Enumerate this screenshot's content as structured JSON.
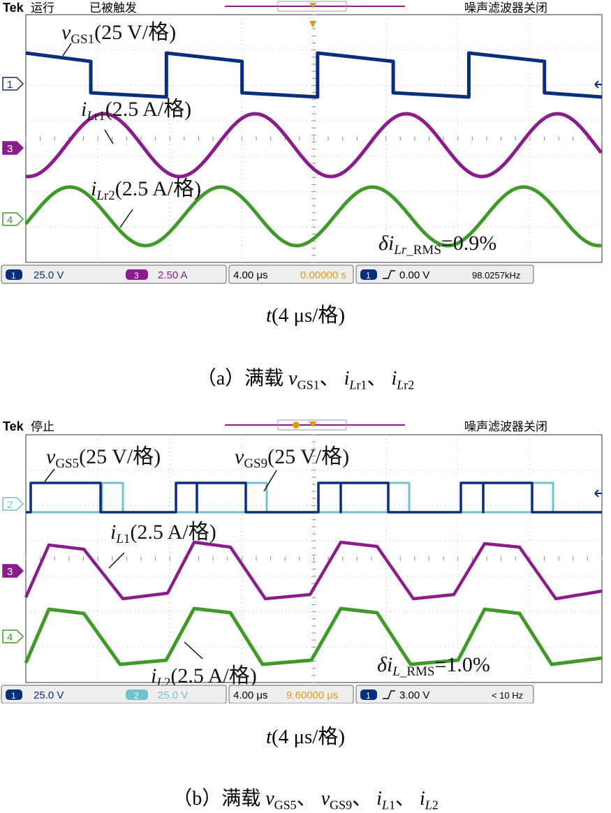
{
  "colors": {
    "ch1": "#0a2f7a",
    "ch2": "#6fc3cf",
    "ch3": "#8a1d8a",
    "ch4": "#3f9a2a",
    "grid": "#b8b8b8",
    "trigger": "#e09a1e"
  },
  "chart_data": [
    {
      "type": "line",
      "id": "a",
      "header": {
        "brand": "Tek",
        "state": "运行",
        "trigger": "已被触发",
        "filter": "噪声滤波器关闭"
      },
      "x_unit_per_div": "4 μs",
      "xlabel": {
        "var": "t",
        "text": "(4 μs/格)"
      },
      "caption": {
        "prefix": "（a）满载 ",
        "sep": "、 "
      },
      "series": [
        {
          "name": "vGS1",
          "channel": 1,
          "kind": "square",
          "period_div": 2.1,
          "phase_div": -1.2,
          "high": 0.3,
          "low": -0.3,
          "scale_text": "(25 V/格)"
        },
        {
          "name": "iLr1",
          "channel": 3,
          "kind": "sine",
          "period_div": 2.1,
          "phase_div": 0.0,
          "amp": 0.8,
          "scale_text": "(2.5 A/格)"
        },
        {
          "name": "iLr2",
          "channel": 4,
          "kind": "sine",
          "period_div": 2.1,
          "phase_div": 0.0,
          "amp": 0.8,
          "scale_text": "(2.5 A/格)"
        }
      ],
      "metric": {
        "label": "δi",
        "sub": "Lr_RMS",
        "value": "=0.9%"
      },
      "status": {
        "ch1_label": "1",
        "ch1_scale": "25.0 V",
        "chb_label": "3",
        "chb_scale": "2.50 A",
        "timebase": "4.00 μs",
        "position": "0.00000 s",
        "trig_ch": "1",
        "trig_level": "0.00 V",
        "freq": "98.0257kHz"
      },
      "markers": [
        "1",
        "3",
        "4"
      ]
    },
    {
      "type": "line",
      "id": "b",
      "header": {
        "brand": "Tek",
        "state": "停止",
        "trigger": "",
        "filter": "噪声滤波器关闭"
      },
      "x_unit_per_div": "4 μs",
      "xlabel": {
        "var": "t",
        "text": "(4 μs/格)"
      },
      "caption": {
        "prefix": "（b）满载 ",
        "sep": "、 "
      },
      "series": [
        {
          "name": "vGS5",
          "channel": 1,
          "kind": "pulse",
          "period_div": 2.1,
          "scale_text": "(25 V/格)"
        },
        {
          "name": "vGS9",
          "channel": 2,
          "kind": "pulse",
          "period_div": 2.1,
          "scale_text": "(25 V/格)"
        },
        {
          "name": "iL1",
          "channel": 3,
          "kind": "trapezoid",
          "period_div": 2.1,
          "scale_text": "(2.5 A/格)"
        },
        {
          "name": "iL2",
          "channel": 4,
          "kind": "trapezoid",
          "period_div": 2.1,
          "scale_text": "(2.5 A/格)"
        }
      ],
      "metric": {
        "label": "δi",
        "sub": "L_RMS",
        "value": "=1.0%"
      },
      "status": {
        "ch1_label": "1",
        "ch1_scale": "25.0 V",
        "chb_label": "2",
        "chb_scale": "25.0 V",
        "timebase": "4.00 μs",
        "position": "9.60000 μs",
        "trig_ch": "1",
        "trig_level": "3.00 V",
        "freq": "< 10 Hz"
      },
      "markers": [
        "2",
        "3",
        "4"
      ]
    }
  ]
}
